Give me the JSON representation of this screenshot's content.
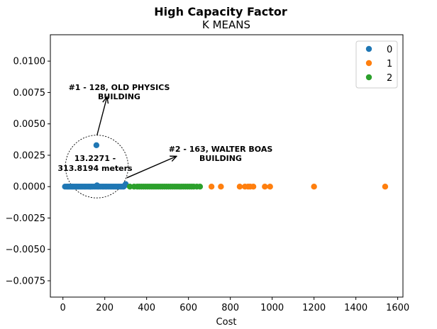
{
  "chart_data": {
    "type": "scatter",
    "title": "High Capacity Factor",
    "subtitle": "K MEANS",
    "xlabel": "Cost",
    "ylabel": "",
    "xlim": [
      -60,
      1625
    ],
    "ylim": [
      -0.0088,
      0.0121
    ],
    "x_ticks": [
      0,
      200,
      400,
      600,
      800,
      1000,
      1200,
      1400,
      1600
    ],
    "y_ticks": [
      -0.0075,
      -0.005,
      -0.0025,
      0.0,
      0.0025,
      0.005,
      0.0075,
      0.01
    ],
    "y_tick_labels": [
      "−0.0075",
      "−0.0050",
      "−0.0025",
      "0.0000",
      "0.0025",
      "0.0050",
      "0.0075",
      "0.0100"
    ],
    "legend_position": "top-right",
    "grid": false,
    "series": [
      {
        "name": "0",
        "color": "#1f77b4",
        "points": [
          [
            10,
            0
          ],
          [
            18,
            0
          ],
          [
            24,
            0
          ],
          [
            30,
            0
          ],
          [
            36,
            0
          ],
          [
            42,
            0
          ],
          [
            48,
            0
          ],
          [
            55,
            0
          ],
          [
            62,
            0
          ],
          [
            68,
            0
          ],
          [
            75,
            0
          ],
          [
            82,
            0
          ],
          [
            88,
            0
          ],
          [
            95,
            0
          ],
          [
            102,
            0
          ],
          [
            108,
            0
          ],
          [
            115,
            0
          ],
          [
            122,
            0
          ],
          [
            128,
            0
          ],
          [
            135,
            0
          ],
          [
            142,
            0
          ],
          [
            150,
            0
          ],
          [
            158,
            0
          ],
          [
            166,
            0
          ],
          [
            172,
            0
          ],
          [
            180,
            0
          ],
          [
            188,
            0
          ],
          [
            195,
            0
          ],
          [
            203,
            0
          ],
          [
            210,
            0
          ],
          [
            218,
            0
          ],
          [
            226,
            0
          ],
          [
            234,
            0
          ],
          [
            242,
            0
          ],
          [
            250,
            0
          ],
          [
            258,
            0
          ],
          [
            266,
            0
          ],
          [
            274,
            0
          ],
          [
            282,
            0
          ],
          [
            290,
            0
          ],
          [
            163,
            0.0001
          ],
          [
            300,
            0.0002
          ],
          [
            296,
            0.0001
          ],
          [
            160,
            0.0033
          ]
        ]
      },
      {
        "name": "1",
        "color": "#ff7f0e",
        "points": [
          [
            710,
            0
          ],
          [
            755,
            0
          ],
          [
            845,
            0
          ],
          [
            870,
            0
          ],
          [
            885,
            0
          ],
          [
            895,
            0
          ],
          [
            910,
            0
          ],
          [
            965,
            0
          ],
          [
            990,
            0
          ],
          [
            1200,
            0
          ],
          [
            1540,
            0
          ]
        ]
      },
      {
        "name": "2",
        "color": "#2ca02c",
        "points": [
          [
            320,
            0
          ],
          [
            340,
            0
          ],
          [
            355,
            0
          ],
          [
            365,
            0
          ],
          [
            375,
            0
          ],
          [
            385,
            0
          ],
          [
            395,
            0
          ],
          [
            405,
            0
          ],
          [
            415,
            0
          ],
          [
            425,
            0
          ],
          [
            435,
            0
          ],
          [
            445,
            0
          ],
          [
            455,
            0
          ],
          [
            465,
            0
          ],
          [
            475,
            0
          ],
          [
            485,
            0
          ],
          [
            495,
            0
          ],
          [
            505,
            0
          ],
          [
            515,
            0
          ],
          [
            525,
            0
          ],
          [
            535,
            0
          ],
          [
            545,
            0
          ],
          [
            555,
            0
          ],
          [
            565,
            0
          ],
          [
            575,
            0
          ],
          [
            585,
            0
          ],
          [
            595,
            0
          ],
          [
            605,
            0
          ],
          [
            615,
            0
          ],
          [
            625,
            0
          ],
          [
            640,
            0
          ],
          [
            655,
            0
          ]
        ]
      }
    ],
    "annotations": [
      {
        "lines": [
          "#1 - 128, OLD PHYSICS",
          "BUILDING"
        ],
        "from": [
          163,
          0.0041
        ],
        "to": [
          210,
          0.0071
        ]
      },
      {
        "lines": [
          "#2 - 163, WALTER BOAS",
          "BUILDING"
        ],
        "from": [
          305,
          0.0007
        ],
        "to": [
          540,
          0.0024
        ]
      },
      {
        "lines": [
          "13.2271 -",
          "313.8194 meters"
        ],
        "at": [
          105,
          0.0016
        ]
      }
    ],
    "circle": {
      "center": [
        162,
        0.0016
      ],
      "radius_x": 150
    }
  }
}
